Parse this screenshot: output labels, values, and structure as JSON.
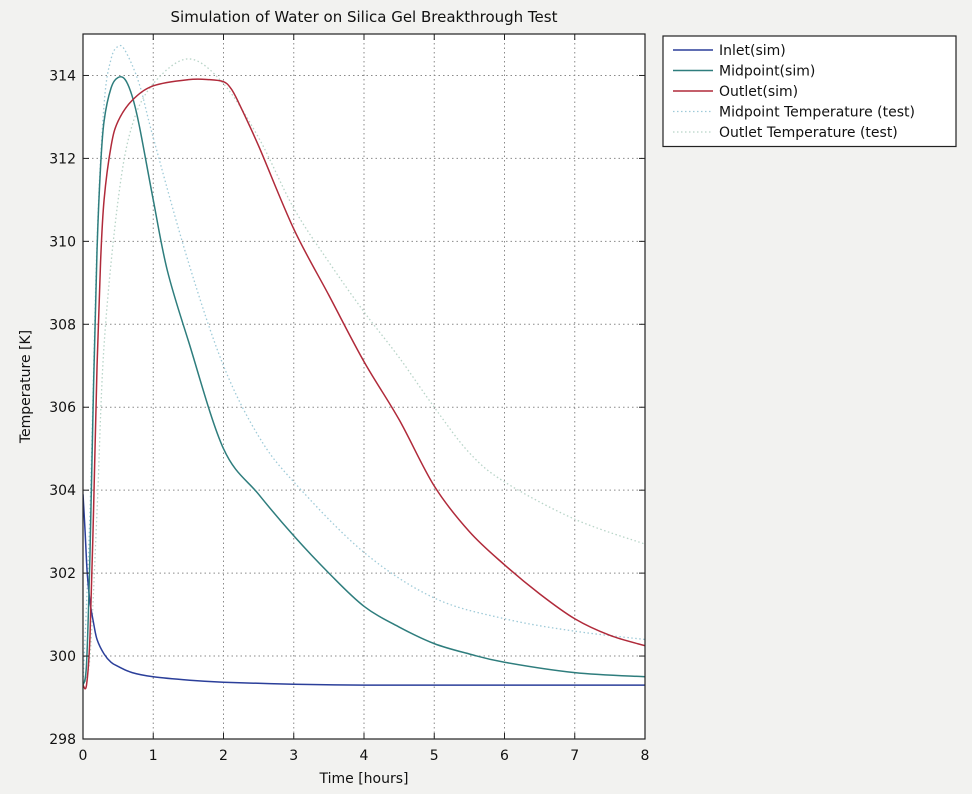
{
  "chart_data": {
    "type": "line",
    "title": "Simulation of Water on Silica Gel Breakthrough Test",
    "xlabel": "Time [hours]",
    "ylabel": "Temperature [K]",
    "xlim": [
      0,
      8
    ],
    "ylim": [
      298,
      315
    ],
    "xticks": [
      0,
      1,
      2,
      3,
      4,
      5,
      6,
      7,
      8
    ],
    "yticks": [
      298,
      300,
      302,
      304,
      306,
      308,
      310,
      312,
      314
    ],
    "grid": true,
    "legend_position": "outside-top-right",
    "series": [
      {
        "name": "Inlet(sim)",
        "color": "#2b3f9a",
        "style": "solid",
        "x": [
          0,
          0.03,
          0.06,
          0.1,
          0.15,
          0.2,
          0.3,
          0.4,
          0.5,
          0.7,
          1,
          1.5,
          2,
          3,
          4,
          5,
          6,
          7,
          8
        ],
        "y": [
          303.9,
          303.0,
          302.0,
          301.3,
          300.8,
          300.4,
          300.05,
          299.85,
          299.75,
          299.6,
          299.5,
          299.42,
          299.37,
          299.32,
          299.3,
          299.3,
          299.3,
          299.3,
          299.3
        ]
      },
      {
        "name": "Midpoint(sim)",
        "color": "#2e7d7d",
        "style": "solid",
        "x": [
          0,
          0.05,
          0.1,
          0.15,
          0.2,
          0.25,
          0.3,
          0.4,
          0.5,
          0.6,
          0.7,
          0.8,
          1,
          1.2,
          1.5,
          2,
          2.5,
          3,
          3.5,
          4,
          4.5,
          5,
          5.5,
          6,
          7,
          8
        ],
        "y": [
          299.3,
          299.8,
          302.5,
          306.5,
          309.8,
          311.8,
          312.9,
          313.7,
          313.95,
          313.9,
          313.5,
          312.8,
          311.0,
          309.3,
          307.6,
          305.0,
          303.9,
          302.9,
          302.0,
          301.2,
          300.7,
          300.3,
          300.05,
          299.85,
          299.6,
          299.5
        ]
      },
      {
        "name": "Outlet(sim)",
        "color": "#b02a3a",
        "style": "solid",
        "x": [
          0,
          0.05,
          0.1,
          0.15,
          0.2,
          0.25,
          0.3,
          0.4,
          0.5,
          0.7,
          1,
          1.5,
          1.8,
          2,
          2.1,
          2.2,
          2.5,
          3,
          3.5,
          4,
          4.5,
          5,
          5.5,
          6,
          6.5,
          7,
          7.5,
          8
        ],
        "y": [
          299.3,
          299.3,
          300.5,
          303.5,
          307.0,
          309.5,
          311.0,
          312.3,
          312.9,
          313.4,
          313.75,
          313.9,
          313.9,
          313.85,
          313.7,
          313.4,
          312.3,
          310.3,
          308.7,
          307.1,
          305.7,
          304.1,
          303.0,
          302.2,
          301.5,
          300.9,
          300.5,
          300.25
        ]
      },
      {
        "name": "Midpoint Temperature (test)",
        "color": "#9ecad8",
        "style": "dotted",
        "x": [
          0,
          0.1,
          0.2,
          0.3,
          0.4,
          0.5,
          0.6,
          0.8,
          1,
          1.5,
          2,
          2.5,
          3,
          4,
          5,
          6,
          7,
          8
        ],
        "y": [
          299.3,
          303.5,
          310.0,
          313.3,
          314.4,
          314.7,
          314.6,
          313.8,
          312.5,
          309.5,
          307.0,
          305.3,
          304.2,
          302.5,
          301.4,
          300.9,
          300.6,
          300.4
        ]
      },
      {
        "name": "Outlet Temperature (test)",
        "color": "#b8d4c8",
        "style": "dotted",
        "x": [
          0,
          0.1,
          0.2,
          0.3,
          0.5,
          0.7,
          1,
          1.5,
          2,
          2.5,
          3,
          3.5,
          4,
          4.5,
          5,
          5.5,
          6,
          7,
          8
        ],
        "y": [
          299.3,
          300.0,
          303.5,
          307.5,
          311.0,
          312.8,
          313.8,
          314.4,
          313.8,
          312.5,
          310.8,
          309.5,
          308.3,
          307.2,
          306.0,
          304.9,
          304.2,
          303.3,
          302.7
        ]
      }
    ]
  }
}
